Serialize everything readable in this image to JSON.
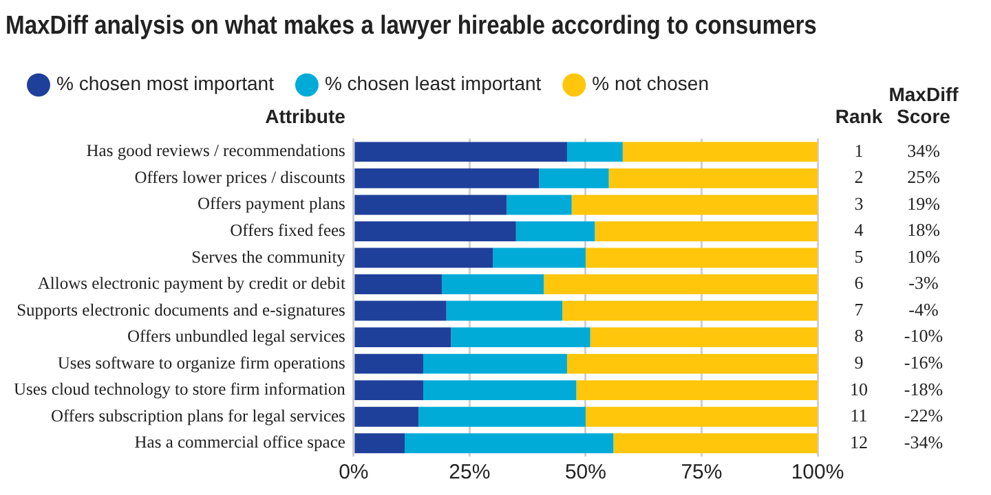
{
  "chart_data": {
    "type": "bar",
    "orientation": "horizontal",
    "stacked": true,
    "title": "MaxDiff analysis on what makes a lawyer hireable according to consumers",
    "categories": [
      "Has good reviews / recommendations",
      "Offers lower prices / discounts",
      "Offers payment plans",
      "Offers fixed fees",
      "Serves the community",
      "Allows electronic payment by credit or debit",
      "Supports electronic documents and e-signatures",
      "Offers unbundled legal services",
      "Uses software to organize firm operations",
      "Uses cloud technology to store firm information",
      "Offers subscription plans for legal services",
      "Has a commercial office space"
    ],
    "series": [
      {
        "name": "% chosen most important",
        "color": "#1f409a",
        "values": [
          46,
          40,
          33,
          35,
          30,
          19,
          20,
          21,
          15,
          15,
          14,
          11
        ]
      },
      {
        "name": "% chosen least important",
        "color": "#00abd8",
        "values": [
          12,
          15,
          14,
          17,
          20,
          22,
          25,
          30,
          31,
          33,
          36,
          45
        ]
      },
      {
        "name": "% not chosen",
        "color": "#ffc60b",
        "values": [
          42,
          45,
          53,
          48,
          50,
          59,
          55,
          49,
          54,
          52,
          50,
          44
        ]
      }
    ],
    "xlim": [
      0,
      100
    ],
    "xticks": [
      {
        "value": 0,
        "label": "0%"
      },
      {
        "value": 25,
        "label": "25%"
      },
      {
        "value": 50,
        "label": "50%"
      },
      {
        "value": 75,
        "label": "75%"
      },
      {
        "value": 100,
        "label": "100%"
      }
    ],
    "grid": "x",
    "legend": "top left",
    "annotations": [
      "Attribute",
      "Rank",
      "MaxDiff Score",
      "1",
      "34%",
      "2",
      "25%",
      "3",
      "19%",
      "4",
      "18%",
      "5",
      "10%",
      "6",
      "-3%",
      "7",
      "-4%",
      "8",
      "-10%",
      "9",
      "-16%",
      "10",
      "-18%",
      "11",
      "-22%",
      "12",
      "-34%"
    ]
  }
}
